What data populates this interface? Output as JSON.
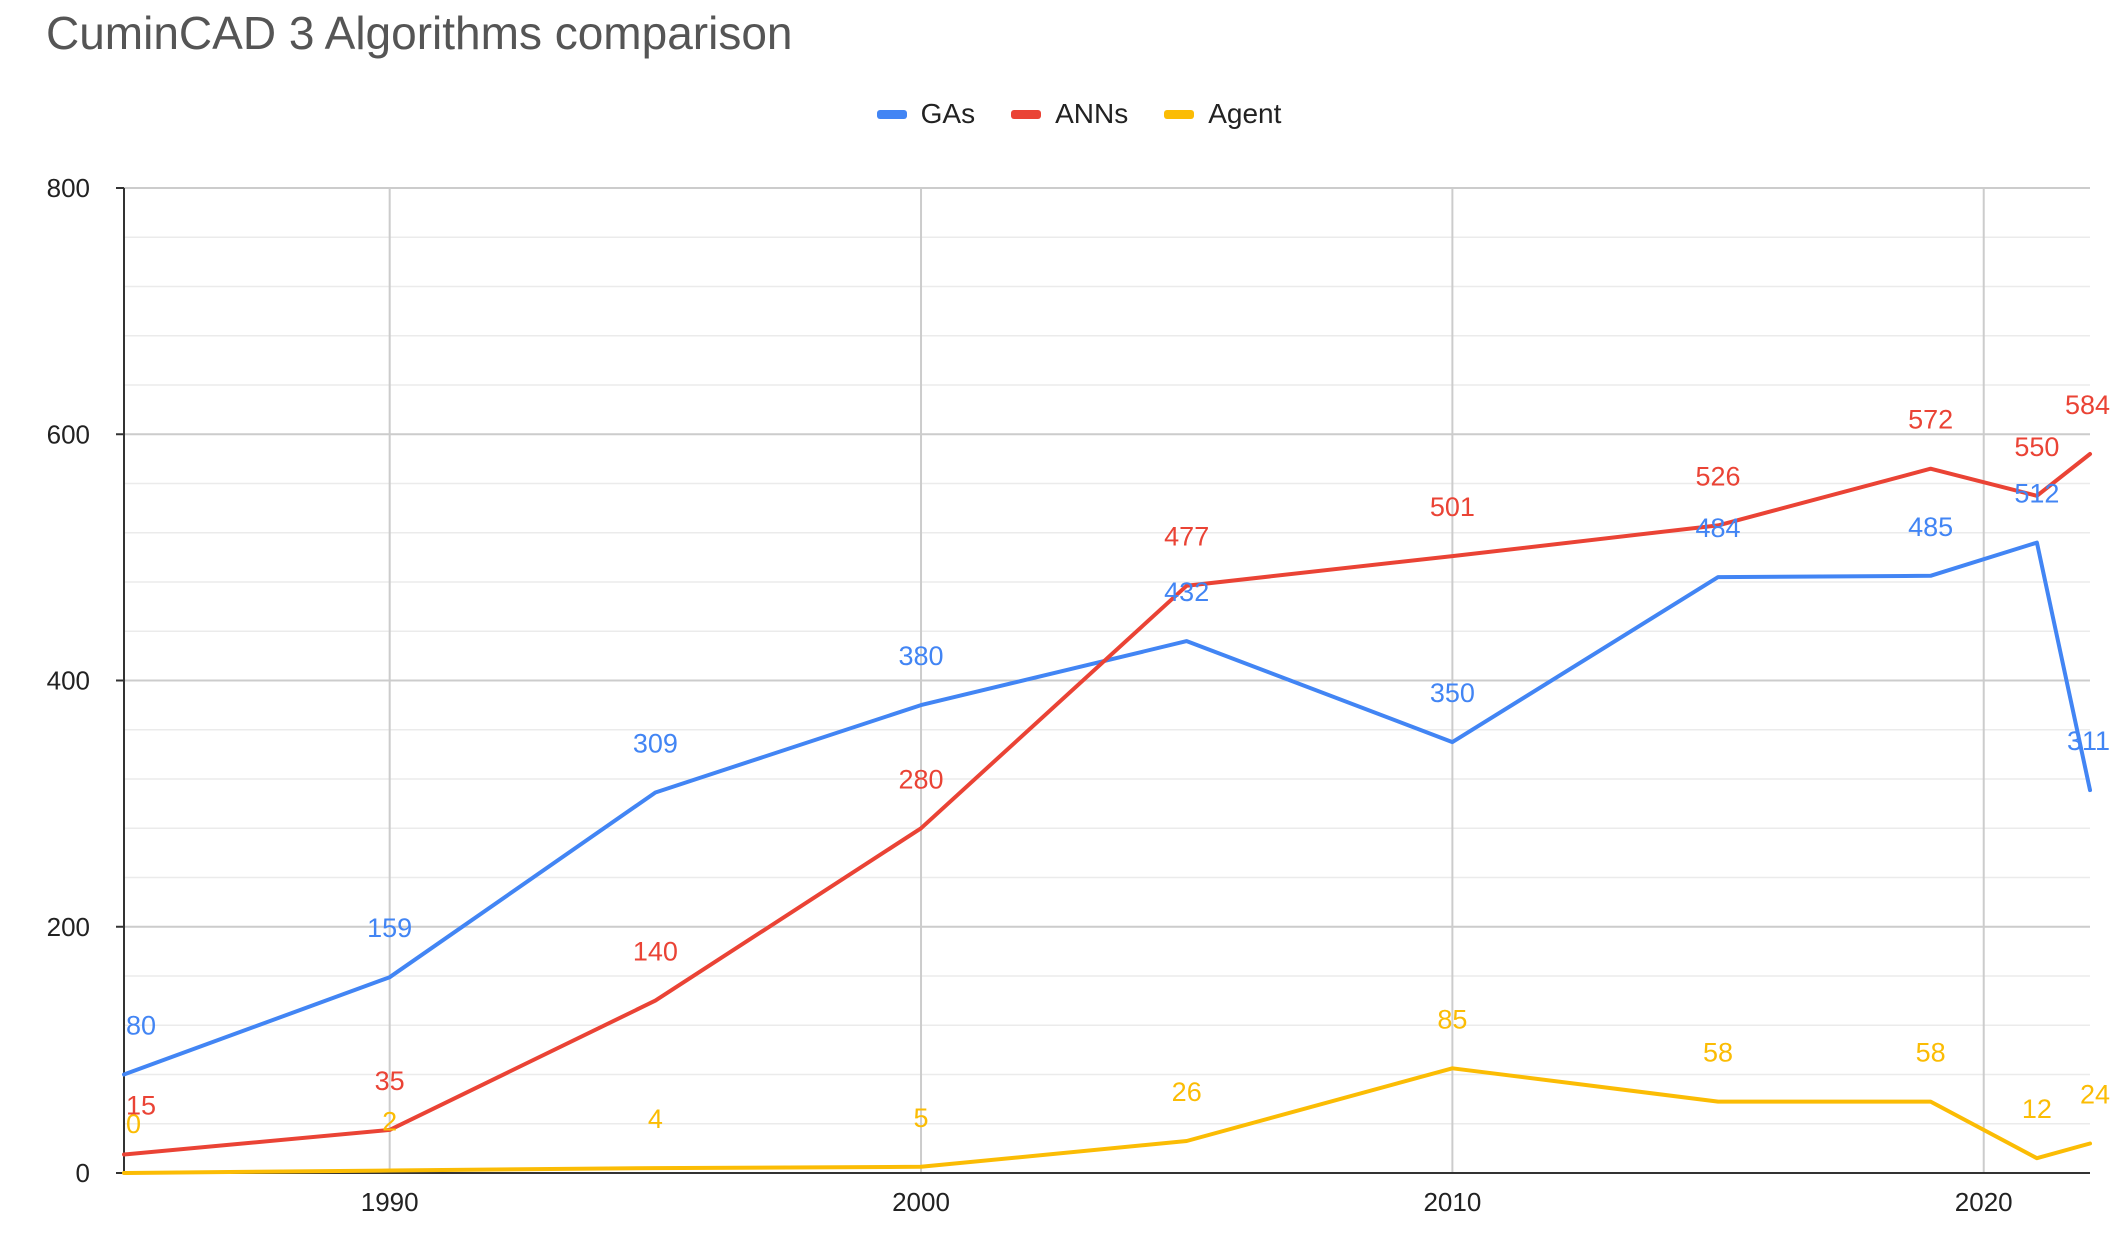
{
  "chart_data": {
    "type": "line",
    "title": "CuminCAD 3 Algorithms comparison",
    "xlabel": "",
    "ylabel": "",
    "x": [
      1985,
      1990,
      1995,
      2000,
      2005,
      2010,
      2015,
      2019,
      2021,
      2022
    ],
    "xlim": [
      1985,
      2022
    ],
    "ylim": [
      0,
      800
    ],
    "x_ticks": [
      "1990",
      "2000",
      "2010",
      "2020"
    ],
    "y_ticks": [
      "0",
      "200",
      "400",
      "600",
      "800"
    ],
    "grid": true,
    "legend_position": "top",
    "data_labels": true,
    "series": [
      {
        "name": "GAs",
        "color": "#4285f4",
        "values": [
          80,
          159,
          309,
          380,
          432,
          350,
          484,
          485,
          512,
          311
        ]
      },
      {
        "name": "ANNs",
        "color": "#ea4335",
        "values": [
          15,
          35,
          140,
          280,
          477,
          501,
          526,
          572,
          550,
          584
        ]
      },
      {
        "name": "Agent",
        "color": "#fbbc04",
        "values": [
          0,
          2,
          4,
          5,
          26,
          85,
          58,
          58,
          12,
          24
        ]
      }
    ]
  }
}
